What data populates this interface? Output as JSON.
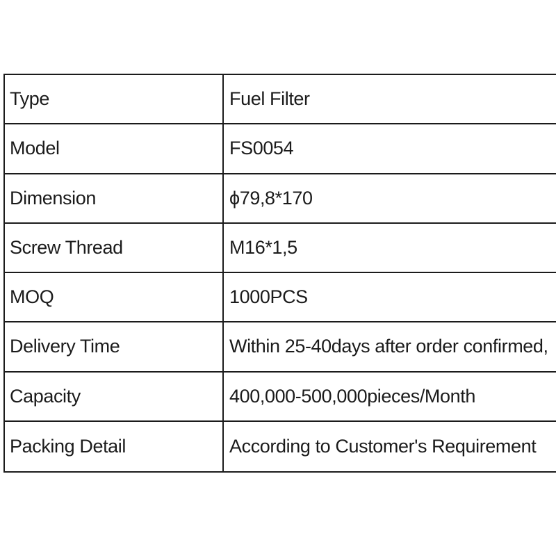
{
  "page": {
    "background_color": "#ffffff",
    "text_color": "#1b1b1b",
    "border_color": "#1b1b1b"
  },
  "table": {
    "rows": [
      {
        "label": "Type",
        "value": "Fuel Filter"
      },
      {
        "label": "Model",
        "value": "FS0054"
      },
      {
        "label": "Dimension",
        "value": "ϕ79,8*170"
      },
      {
        "label": "Screw Thread",
        "value": "M16*1,5"
      },
      {
        "label": "MOQ",
        "value": "1000PCS"
      },
      {
        "label": "Delivery Time",
        "value": "Within 25-40days after order confirmed,"
      },
      {
        "label": "Capacity",
        "value": "400,000-500,000pieces/Month"
      },
      {
        "label": "Packing Detail",
        "value": "According to Customer's Requirement"
      }
    ]
  }
}
